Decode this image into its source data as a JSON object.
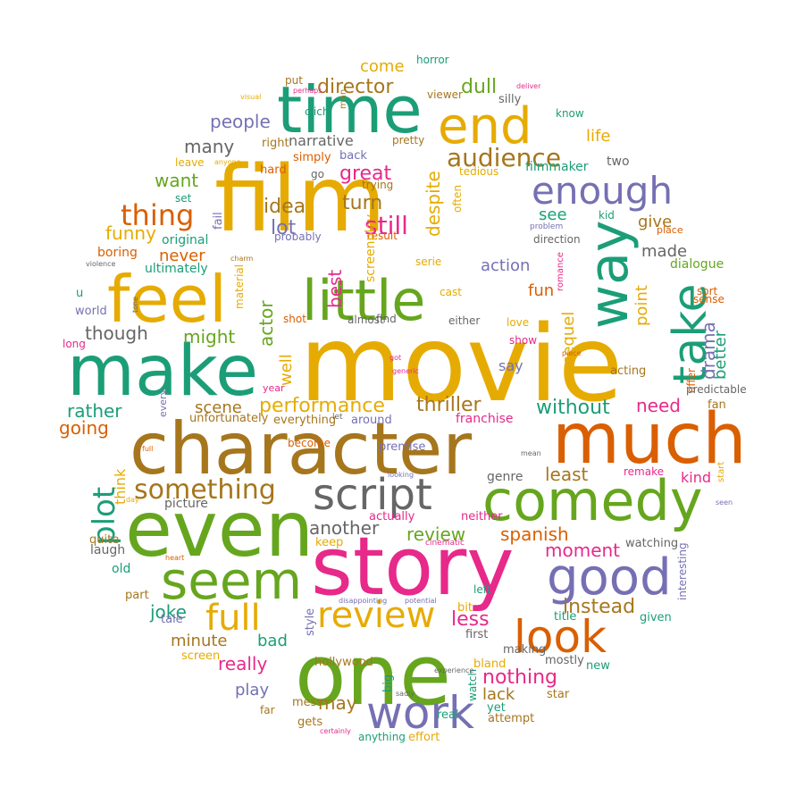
{
  "palette": {
    "green": "#1b9e77",
    "orange": "#d95f02",
    "purple": "#7570b3",
    "pink": "#e7298a",
    "lime": "#66a61e",
    "gold": "#e6ab02",
    "brown": "#a6761d",
    "gray": "#666666"
  },
  "words": [
    {
      "text": "movie",
      "color": "gold"
    },
    {
      "text": "film",
      "color": "gold"
    },
    {
      "text": "character",
      "color": "brown"
    },
    {
      "text": "story",
      "color": "pink"
    },
    {
      "text": "even",
      "color": "lime"
    },
    {
      "text": "one",
      "color": "lime"
    },
    {
      "text": "much",
      "color": "orange"
    },
    {
      "text": "make",
      "color": "green"
    },
    {
      "text": "feel",
      "color": "gold"
    },
    {
      "text": "little",
      "color": "lime"
    },
    {
      "text": "time",
      "color": "green"
    },
    {
      "text": "comedy",
      "color": "lime"
    },
    {
      "text": "way",
      "color": "green"
    },
    {
      "text": "end",
      "color": "gold"
    },
    {
      "text": "take",
      "color": "green"
    },
    {
      "text": "seem",
      "color": "lime"
    },
    {
      "text": "good",
      "color": "purple"
    },
    {
      "text": "script",
      "color": "gray"
    },
    {
      "text": "look",
      "color": "orange"
    },
    {
      "text": "work",
      "color": "purple"
    },
    {
      "text": "full",
      "color": "gold"
    },
    {
      "text": "review",
      "color": "gold"
    },
    {
      "text": "enough",
      "color": "purple"
    },
    {
      "text": "plot",
      "color": "green"
    },
    {
      "text": "thing",
      "color": "orange"
    },
    {
      "text": "something",
      "color": "brown"
    },
    {
      "text": "audience",
      "color": "brown"
    },
    {
      "text": "still",
      "color": "pink"
    },
    {
      "text": "nothing",
      "color": "pink"
    },
    {
      "text": "director",
      "color": "brown"
    },
    {
      "text": "dull",
      "color": "lime"
    },
    {
      "text": "idea",
      "color": "brown"
    },
    {
      "text": "great",
      "color": "pink"
    },
    {
      "text": "turn",
      "color": "brown"
    },
    {
      "text": "lot",
      "color": "purple"
    },
    {
      "text": "performance",
      "color": "gold"
    },
    {
      "text": "thriller",
      "color": "brown"
    },
    {
      "text": "without",
      "color": "green"
    },
    {
      "text": "instead",
      "color": "brown"
    },
    {
      "text": "less",
      "color": "pink"
    },
    {
      "text": "another",
      "color": "gray"
    },
    {
      "text": "review",
      "color": "lime"
    },
    {
      "text": "spanish",
      "color": "orange"
    },
    {
      "text": "moment",
      "color": "pink"
    },
    {
      "text": "despite",
      "color": "gold"
    },
    {
      "text": "scene",
      "color": "brown"
    },
    {
      "text": "least",
      "color": "brown"
    },
    {
      "text": "need",
      "color": "pink"
    },
    {
      "text": "drama",
      "color": "purple"
    },
    {
      "text": "better",
      "color": "green"
    },
    {
      "text": "actor",
      "color": "lime"
    },
    {
      "text": "best",
      "color": "pink"
    },
    {
      "text": "well",
      "color": "gold"
    },
    {
      "text": "sequel",
      "color": "gold"
    },
    {
      "text": "point",
      "color": "gold"
    },
    {
      "text": "might",
      "color": "lime"
    },
    {
      "text": "though",
      "color": "gray"
    },
    {
      "text": "rather",
      "color": "green"
    },
    {
      "text": "going",
      "color": "orange"
    },
    {
      "text": "many",
      "color": "gray"
    },
    {
      "text": "want",
      "color": "lime"
    },
    {
      "text": "funny",
      "color": "gold"
    },
    {
      "text": "never",
      "color": "orange"
    },
    {
      "text": "people",
      "color": "purple"
    },
    {
      "text": "come",
      "color": "gold"
    },
    {
      "text": "life",
      "color": "gold"
    },
    {
      "text": "see",
      "color": "green"
    },
    {
      "text": "give",
      "color": "brown"
    },
    {
      "text": "made",
      "color": "gray"
    },
    {
      "text": "action",
      "color": "purple"
    },
    {
      "text": "fun",
      "color": "orange"
    },
    {
      "text": "joke",
      "color": "green"
    },
    {
      "text": "minute",
      "color": "brown"
    },
    {
      "text": "bad",
      "color": "green"
    },
    {
      "text": "really",
      "color": "pink"
    },
    {
      "text": "play",
      "color": "purple"
    },
    {
      "text": "may",
      "color": "brown"
    },
    {
      "text": "lack",
      "color": "brown"
    },
    {
      "text": "kind",
      "color": "pink"
    },
    {
      "text": "say",
      "color": "purple"
    },
    {
      "text": "narrative",
      "color": "gray"
    },
    {
      "text": "think",
      "color": "gold"
    },
    {
      "text": "original",
      "color": "green"
    },
    {
      "text": "franchise",
      "color": "pink"
    },
    {
      "text": "two",
      "color": "gray"
    },
    {
      "text": "filmmaker",
      "color": "green"
    },
    {
      "text": "serie",
      "color": "gold"
    },
    {
      "text": "boring",
      "color": "orange"
    },
    {
      "text": "ultimately",
      "color": "green"
    },
    {
      "text": "dialogue",
      "color": "lime"
    },
    {
      "text": "acting",
      "color": "brown"
    },
    {
      "text": "fan",
      "color": "brown"
    },
    {
      "text": "sort",
      "color": "orange"
    },
    {
      "text": "sense",
      "color": "orange"
    },
    {
      "text": "offer",
      "color": "orange"
    },
    {
      "text": "predictable",
      "color": "gray"
    },
    {
      "text": "watching",
      "color": "gray"
    },
    {
      "text": "interesting",
      "color": "purple"
    },
    {
      "text": "premise",
      "color": "purple"
    },
    {
      "text": "genre",
      "color": "gray"
    },
    {
      "text": "picture",
      "color": "gray"
    },
    {
      "text": "unfortunately",
      "color": "brown"
    },
    {
      "text": "everything",
      "color": "brown"
    },
    {
      "text": "around",
      "color": "purple"
    },
    {
      "text": "become",
      "color": "orange"
    },
    {
      "text": "keep",
      "color": "gold"
    },
    {
      "text": "actually",
      "color": "pink"
    },
    {
      "text": "neither",
      "color": "pink"
    },
    {
      "text": "old",
      "color": "green"
    },
    {
      "text": "laugh",
      "color": "gray"
    },
    {
      "text": "quite",
      "color": "brown"
    },
    {
      "text": "part",
      "color": "brown"
    },
    {
      "text": "tale",
      "color": "purple"
    },
    {
      "text": "screen",
      "color": "gold"
    },
    {
      "text": "style",
      "color": "purple"
    },
    {
      "text": "hollywood",
      "color": "brown"
    },
    {
      "text": "big",
      "color": "green"
    },
    {
      "text": "watch",
      "color": "green"
    },
    {
      "text": "bit",
      "color": "gold"
    },
    {
      "text": "first",
      "color": "gray"
    },
    {
      "text": "making",
      "color": "gray"
    },
    {
      "text": "bland",
      "color": "gold"
    },
    {
      "text": "title",
      "color": "green"
    },
    {
      "text": "mostly",
      "color": "gray"
    },
    {
      "text": "given",
      "color": "green"
    },
    {
      "text": "new",
      "color": "green"
    },
    {
      "text": "star",
      "color": "brown"
    },
    {
      "text": "left",
      "color": "green"
    },
    {
      "text": "yet",
      "color": "green"
    },
    {
      "text": "attempt",
      "color": "brown"
    },
    {
      "text": "mess",
      "color": "brown"
    },
    {
      "text": "far",
      "color": "brown"
    },
    {
      "text": "gets",
      "color": "brown"
    },
    {
      "text": "anything",
      "color": "green"
    },
    {
      "text": "effort",
      "color": "gold"
    },
    {
      "text": "real",
      "color": "green"
    },
    {
      "text": "u",
      "color": "green"
    },
    {
      "text": "world",
      "color": "purple"
    },
    {
      "text": "long",
      "color": "pink"
    },
    {
      "text": "leave",
      "color": "gold"
    },
    {
      "text": "right",
      "color": "brown"
    },
    {
      "text": "hard",
      "color": "orange"
    },
    {
      "text": "simply",
      "color": "orange"
    },
    {
      "text": "go",
      "color": "gray"
    },
    {
      "text": "back",
      "color": "purple"
    },
    {
      "text": "trying",
      "color": "brown"
    },
    {
      "text": "pretty",
      "color": "brown"
    },
    {
      "text": "tedious",
      "color": "gold"
    },
    {
      "text": "often",
      "color": "gold"
    },
    {
      "text": "set",
      "color": "green"
    },
    {
      "text": "fail",
      "color": "purple"
    },
    {
      "text": "clich",
      "color": "green"
    },
    {
      "text": "put",
      "color": "brown"
    },
    {
      "text": "viewer",
      "color": "brown"
    },
    {
      "text": "silly",
      "color": "gray"
    },
    {
      "text": "know",
      "color": "green"
    },
    {
      "text": "horror",
      "color": "green"
    },
    {
      "text": "man",
      "color": "brown"
    },
    {
      "text": "probably",
      "color": "purple"
    },
    {
      "text": "result",
      "color": "orange"
    },
    {
      "text": "direction",
      "color": "gray"
    },
    {
      "text": "kid",
      "color": "green"
    },
    {
      "text": "place",
      "color": "orange"
    },
    {
      "text": "romance",
      "color": "pink"
    },
    {
      "text": "problem",
      "color": "purple"
    },
    {
      "text": "screenplay",
      "color": "gold"
    },
    {
      "text": "cast",
      "color": "gold"
    },
    {
      "text": "find",
      "color": "gray"
    },
    {
      "text": "either",
      "color": "gray"
    },
    {
      "text": "almost",
      "color": "gray"
    },
    {
      "text": "shot",
      "color": "orange"
    },
    {
      "text": "material",
      "color": "gold"
    },
    {
      "text": "love",
      "color": "gold"
    },
    {
      "text": "show",
      "color": "pink"
    },
    {
      "text": "year",
      "color": "pink"
    },
    {
      "text": "every",
      "color": "purple"
    },
    {
      "text": "let",
      "color": "gray"
    },
    {
      "text": "got",
      "color": "pink"
    },
    {
      "text": "generic",
      "color": "pink"
    },
    {
      "text": "piece",
      "color": "orange"
    },
    {
      "text": "charm",
      "color": "brown"
    },
    {
      "text": "violence",
      "color": "gray"
    },
    {
      "text": "tone",
      "color": "gray"
    },
    {
      "text": "visual",
      "color": "gold"
    },
    {
      "text": "perhaps",
      "color": "pink"
    },
    {
      "text": "deliver",
      "color": "pink"
    },
    {
      "text": "anyone",
      "color": "gold"
    },
    {
      "text": "full",
      "color": "orange"
    },
    {
      "text": "looking",
      "color": "purple"
    },
    {
      "text": "mean",
      "color": "gray"
    },
    {
      "text": "remake",
      "color": "pink"
    },
    {
      "text": "start",
      "color": "gold"
    },
    {
      "text": "seen",
      "color": "purple"
    },
    {
      "text": "day",
      "color": "gold"
    },
    {
      "text": "heart",
      "color": "orange"
    },
    {
      "text": "cinematic",
      "color": "pink"
    },
    {
      "text": "disappointing",
      "color": "purple"
    },
    {
      "text": "potential",
      "color": "purple"
    },
    {
      "text": "experience",
      "color": "gray"
    },
    {
      "text": "sadly",
      "color": "gray"
    },
    {
      "text": "certainly",
      "color": "pink"
    },
    {
      "text": "version",
      "color": "gray"
    }
  ]
}
